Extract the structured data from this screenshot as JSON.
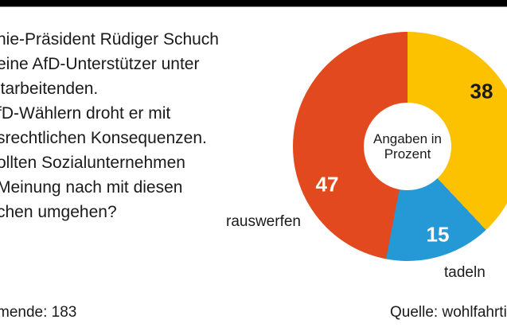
{
  "page": {
    "background_color": "#ffffff",
    "top_bar_color": "#000000"
  },
  "question": {
    "lines": [
      "nie-Präsident Rüdiger Schuch",
      "eine AfD-Unterstützer unter",
      "itarbeitenden.",
      "fD-Wählern droht er mit",
      "srechtlichen Konsequenzen.",
      "ollten Sozialunternehmen",
      "Meinung nach mit diesen",
      "chen umgehen?"
    ]
  },
  "chart_data": {
    "type": "pie",
    "subtype": "donut",
    "units": "percent",
    "start_angle_deg": 0,
    "direction": "clockwise",
    "center_label": [
      "Angaben in",
      "Prozent"
    ],
    "slices": [
      {
        "label": "",
        "value": 38,
        "value_label": "38",
        "color": "#FCC200",
        "value_label_color": "#1a1a1a"
      },
      {
        "label": "tadeln",
        "value": 15,
        "value_label": "15",
        "color": "#2598D6",
        "value_label_color": "#ffffff"
      },
      {
        "label": "rauswerfen",
        "value": 47,
        "value_label": "47",
        "color": "#E2491E",
        "value_label_color": "#ffffff"
      }
    ]
  },
  "footer": {
    "left": "mende: 183",
    "right": "Quelle: wohlfahrti"
  }
}
